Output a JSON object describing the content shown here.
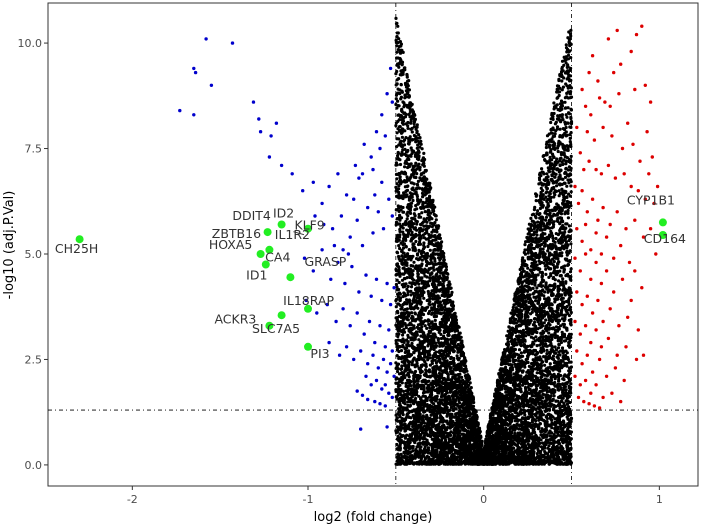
{
  "chart_data": {
    "type": "scatter",
    "xlabel": "log2 (fold change)",
    "ylabel": "-log10 (adj.P.Val)",
    "xlim": [
      -2.48,
      1.22
    ],
    "ylim": [
      -0.5,
      10.95
    ],
    "x_ticks": [
      -2,
      -1,
      0,
      1
    ],
    "x_tick_labels": [
      "-2",
      "-1",
      "0",
      "1"
    ],
    "y_ticks": [
      0,
      2.5,
      5,
      7.5,
      10
    ],
    "y_tick_labels": [
      "0.0",
      "2.5",
      "5.0",
      "7.5",
      "10.0"
    ],
    "grid": false,
    "thresholds": {
      "log2fc_low": -0.5,
      "log2fc_high": 0.5,
      "neg_log10_p": 1.3
    },
    "colors": {
      "not_significant": "#000000",
      "down": "#0000cc",
      "up": "#dd0000",
      "highlight": "#22ee22",
      "threshold_line": "#000000"
    },
    "series": [
      {
        "points": [
          [
            -1.58,
            10.1
          ],
          [
            -1.43,
            10.0
          ],
          [
            -1.65,
            9.4
          ],
          [
            -1.64,
            9.3
          ],
          [
            -1.73,
            8.4
          ],
          [
            -1.65,
            8.3
          ],
          [
            -1.55,
            9.0
          ],
          [
            -1.31,
            8.6
          ],
          [
            -1.28,
            8.2
          ],
          [
            -1.27,
            7.9
          ],
          [
            -1.21,
            7.8
          ],
          [
            -1.18,
            8.1
          ],
          [
            -1.22,
            7.3
          ],
          [
            -1.15,
            7.1
          ],
          [
            -1.09,
            6.9
          ],
          [
            -1.03,
            6.5
          ],
          [
            -0.97,
            6.7
          ],
          [
            -0.92,
            6.2
          ],
          [
            -0.88,
            6.6
          ],
          [
            -0.83,
            6.9
          ],
          [
            -0.78,
            6.4
          ],
          [
            -0.73,
            7.1
          ],
          [
            -0.71,
            6.8
          ],
          [
            -0.68,
            7.6
          ],
          [
            -0.64,
            7.3
          ],
          [
            -0.61,
            7.9
          ],
          [
            -0.58,
            8.3
          ],
          [
            -0.55,
            8.8
          ],
          [
            -0.53,
            9.4
          ],
          [
            -0.52,
            8.6
          ],
          [
            -0.96,
            5.9
          ],
          [
            -0.91,
            5.7
          ],
          [
            -0.86,
            5.6
          ],
          [
            -0.81,
            5.9
          ],
          [
            -0.76,
            5.4
          ],
          [
            -0.72,
            5.8
          ],
          [
            -0.69,
            5.2
          ],
          [
            -0.66,
            6.1
          ],
          [
            -0.63,
            5.5
          ],
          [
            -0.6,
            6.0
          ],
          [
            -0.57,
            5.6
          ],
          [
            -0.54,
            6.3
          ],
          [
            -0.52,
            5.9
          ],
          [
            -1.02,
            4.9
          ],
          [
            -0.97,
            4.6
          ],
          [
            -0.92,
            5.1
          ],
          [
            -0.87,
            4.4
          ],
          [
            -0.83,
            4.8
          ],
          [
            -0.79,
            4.3
          ],
          [
            -0.75,
            4.7
          ],
          [
            -0.71,
            4.1
          ],
          [
            -0.67,
            4.5
          ],
          [
            -0.64,
            4.0
          ],
          [
            -0.61,
            4.4
          ],
          [
            -0.58,
            3.9
          ],
          [
            -0.55,
            4.3
          ],
          [
            -0.53,
            3.8
          ],
          [
            -0.51,
            4.2
          ],
          [
            -1.01,
            3.9
          ],
          [
            -0.95,
            3.6
          ],
          [
            -0.89,
            3.8
          ],
          [
            -0.84,
            3.4
          ],
          [
            -0.8,
            3.7
          ],
          [
            -0.76,
            3.3
          ],
          [
            -0.72,
            3.6
          ],
          [
            -0.68,
            3.1
          ],
          [
            -0.65,
            3.4
          ],
          [
            -0.62,
            2.9
          ],
          [
            -0.59,
            3.3
          ],
          [
            -0.56,
            2.8
          ],
          [
            -0.54,
            3.2
          ],
          [
            -0.52,
            2.7
          ],
          [
            -0.88,
            2.9
          ],
          [
            -0.82,
            2.6
          ],
          [
            -0.78,
            2.8
          ],
          [
            -0.74,
            2.5
          ],
          [
            -0.7,
            2.7
          ],
          [
            -0.66,
            2.4
          ],
          [
            -0.63,
            2.6
          ],
          [
            -0.6,
            2.3
          ],
          [
            -0.57,
            2.5
          ],
          [
            -0.55,
            2.2
          ],
          [
            -0.53,
            2.4
          ],
          [
            -0.51,
            2.1
          ],
          [
            -0.67,
            2.1
          ],
          [
            -0.64,
            1.9
          ],
          [
            -0.61,
            2.0
          ],
          [
            -0.58,
            1.8
          ],
          [
            -0.56,
            1.9
          ],
          [
            -0.54,
            1.7
          ],
          [
            -0.52,
            1.6
          ],
          [
            -0.72,
            1.75
          ],
          [
            -0.69,
            1.65
          ],
          [
            -0.66,
            1.55
          ],
          [
            -0.62,
            1.5
          ],
          [
            -0.59,
            1.45
          ],
          [
            -0.56,
            1.4
          ],
          [
            -0.7,
            0.85
          ],
          [
            -0.55,
            0.9
          ],
          [
            -0.74,
            6.3
          ],
          [
            -0.69,
            6.9
          ],
          [
            -0.63,
            7.0
          ],
          [
            -0.59,
            7.5
          ],
          [
            -0.56,
            7.8
          ],
          [
            -0.62,
            6.4
          ],
          [
            -0.58,
            6.7
          ],
          [
            -0.85,
            5.2
          ],
          [
            -0.8,
            5.1
          ],
          [
            -0.77,
            5.0
          ]
        ]
      },
      {
        "points": [
          [
            0.76,
            10.3
          ],
          [
            0.71,
            10.1
          ],
          [
            0.78,
            9.5
          ],
          [
            0.62,
            9.7
          ],
          [
            0.74,
            9.3
          ],
          [
            0.65,
            9.1
          ],
          [
            0.84,
            9.8
          ],
          [
            0.9,
            10.4
          ],
          [
            0.87,
            10.2
          ],
          [
            0.86,
            8.9
          ],
          [
            0.69,
            8.6
          ],
          [
            0.58,
            8.5
          ],
          [
            0.61,
            8.3
          ],
          [
            0.66,
            8.7
          ],
          [
            0.72,
            8.5
          ],
          [
            0.77,
            8.8
          ],
          [
            0.82,
            8.1
          ],
          [
            0.59,
            7.9
          ],
          [
            0.63,
            7.7
          ],
          [
            0.68,
            8.0
          ],
          [
            0.73,
            7.8
          ],
          [
            0.79,
            7.5
          ],
          [
            0.85,
            7.6
          ],
          [
            0.89,
            7.2
          ],
          [
            0.55,
            7.4
          ],
          [
            0.57,
            7.0
          ],
          [
            0.6,
            7.2
          ],
          [
            0.64,
            7.0
          ],
          [
            0.67,
            6.9
          ],
          [
            0.71,
            7.1
          ],
          [
            0.75,
            6.8
          ],
          [
            0.8,
            6.9
          ],
          [
            0.84,
            6.6
          ],
          [
            0.88,
            6.5
          ],
          [
            0.92,
            6.3
          ],
          [
            0.52,
            6.6
          ],
          [
            0.54,
            6.2
          ],
          [
            0.56,
            6.5
          ],
          [
            0.59,
            6.0
          ],
          [
            0.62,
            6.3
          ],
          [
            0.65,
            5.8
          ],
          [
            0.68,
            6.1
          ],
          [
            0.72,
            5.7
          ],
          [
            0.76,
            6.0
          ],
          [
            0.81,
            5.6
          ],
          [
            0.86,
            5.8
          ],
          [
            0.91,
            5.4
          ],
          [
            0.53,
            5.6
          ],
          [
            0.56,
            5.3
          ],
          [
            0.58,
            5.7
          ],
          [
            0.61,
            5.1
          ],
          [
            0.64,
            5.5
          ],
          [
            0.67,
            5.0
          ],
          [
            0.7,
            5.4
          ],
          [
            0.74,
            4.9
          ],
          [
            0.78,
            5.2
          ],
          [
            0.83,
            4.8
          ],
          [
            0.52,
            4.9
          ],
          [
            0.55,
            4.6
          ],
          [
            0.58,
            5.0
          ],
          [
            0.61,
            4.4
          ],
          [
            0.64,
            4.8
          ],
          [
            0.67,
            4.3
          ],
          [
            0.7,
            4.6
          ],
          [
            0.74,
            4.1
          ],
          [
            0.79,
            4.4
          ],
          [
            0.84,
            3.9
          ],
          [
            0.9,
            4.2
          ],
          [
            0.53,
            4.1
          ],
          [
            0.56,
            3.8
          ],
          [
            0.59,
            4.0
          ],
          [
            0.62,
            3.6
          ],
          [
            0.65,
            3.9
          ],
          [
            0.68,
            3.4
          ],
          [
            0.72,
            3.7
          ],
          [
            0.77,
            3.3
          ],
          [
            0.82,
            3.5
          ],
          [
            0.52,
            3.4
          ],
          [
            0.55,
            3.1
          ],
          [
            0.58,
            3.3
          ],
          [
            0.61,
            2.9
          ],
          [
            0.64,
            3.2
          ],
          [
            0.67,
            2.8
          ],
          [
            0.71,
            3.0
          ],
          [
            0.76,
            2.6
          ],
          [
            0.81,
            2.8
          ],
          [
            0.87,
            2.5
          ],
          [
            0.53,
            2.7
          ],
          [
            0.56,
            2.4
          ],
          [
            0.59,
            2.6
          ],
          [
            0.62,
            2.2
          ],
          [
            0.66,
            2.5
          ],
          [
            0.7,
            2.1
          ],
          [
            0.75,
            2.3
          ],
          [
            0.8,
            2.0
          ],
          [
            0.52,
            2.1
          ],
          [
            0.55,
            1.9
          ],
          [
            0.58,
            2.0
          ],
          [
            0.61,
            1.7
          ],
          [
            0.64,
            1.9
          ],
          [
            0.68,
            1.6
          ],
          [
            0.73,
            1.7
          ],
          [
            0.78,
            1.5
          ],
          [
            0.54,
            1.6
          ],
          [
            0.57,
            1.5
          ],
          [
            0.6,
            1.45
          ],
          [
            0.63,
            1.4
          ],
          [
            0.66,
            1.35
          ],
          [
            0.92,
            9.0
          ],
          [
            0.95,
            8.6
          ],
          [
            0.93,
            7.9
          ],
          [
            0.96,
            7.3
          ],
          [
            0.94,
            6.9
          ],
          [
            0.97,
            6.2
          ],
          [
            0.95,
            5.6
          ],
          [
            0.98,
            5.0
          ],
          [
            0.99,
            6.6
          ],
          [
            0.91,
            2.6
          ],
          [
            0.88,
            3.2
          ],
          [
            0.86,
            4.6
          ],
          [
            0.6,
            9.3
          ],
          [
            0.56,
            8.9
          ],
          [
            0.53,
            8.0
          ]
        ]
      },
      {
        "points": [
          [
            -2.3,
            5.35
          ],
          [
            -1.23,
            5.52
          ],
          [
            -1.22,
            5.1
          ],
          [
            -1.27,
            5.0
          ],
          [
            -1.24,
            4.75
          ],
          [
            -1.15,
            5.7
          ],
          [
            -1.0,
            5.6
          ],
          [
            -1.1,
            4.45
          ],
          [
            -1.0,
            3.7
          ],
          [
            -1.15,
            3.55
          ],
          [
            -1.22,
            3.3
          ],
          [
            -1.0,
            2.8
          ],
          [
            1.02,
            5.75
          ],
          [
            1.02,
            5.45
          ]
        ]
      }
    ],
    "labels": [
      "CH25H",
      "DDIT4",
      "ID2",
      "ZBTB16",
      "IL1R2",
      "KLF9",
      "HOXA5",
      "CA4",
      "ID1",
      "GRASP",
      "ACKR3",
      "IL18RAP",
      "SLC7A5",
      "PI3",
      "CYP1B1",
      "CD164"
    ]
  }
}
